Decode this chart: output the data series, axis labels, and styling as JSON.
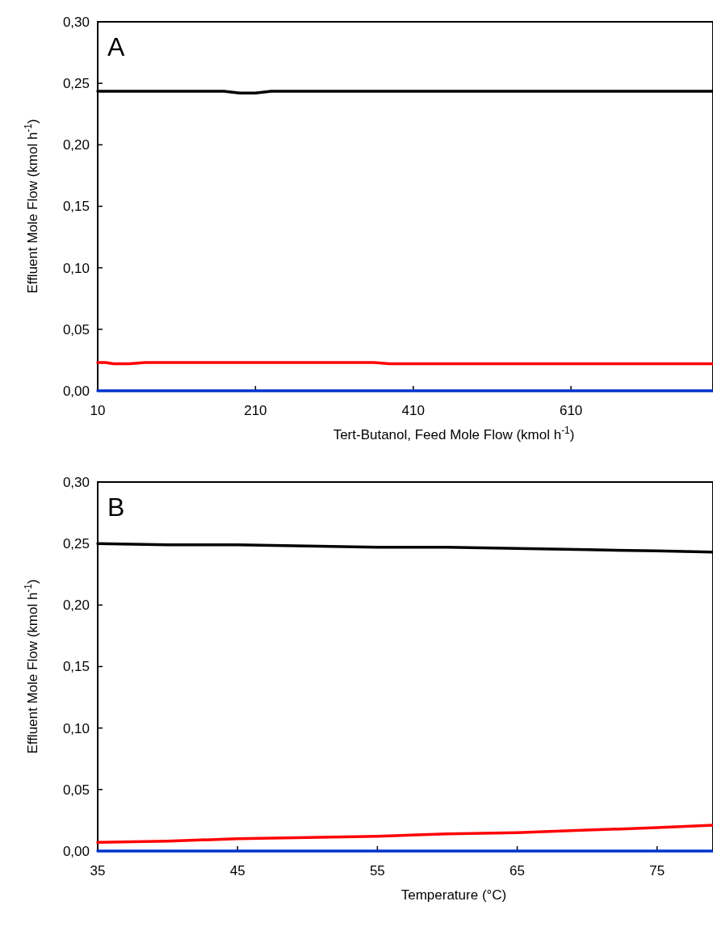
{
  "chart_data": [
    {
      "type": "line",
      "annotations": [
        "A"
      ],
      "xlabel": "Tert-Butanol, Feed Mole Flow (kmol h$^{-1}$)",
      "ylabel": "Effluent Mole Flow (kmol h$^{-1}$)",
      "xlim": [
        10,
        790
      ],
      "xticks": [
        10,
        210,
        410,
        610
      ],
      "ylim": [
        0,
        0.3
      ],
      "yticks": [
        {
          "value": 0,
          "label": "0,00"
        },
        {
          "value": 0.05,
          "label": "0,05"
        },
        {
          "value": 0.1,
          "label": "0,10"
        },
        {
          "value": 0.15,
          "label": "0,15"
        },
        {
          "value": 0.2,
          "label": "0,20"
        },
        {
          "value": 0.25,
          "label": "0,25"
        },
        {
          "value": 0.3,
          "label": "0,30"
        }
      ],
      "grid": false,
      "marker": "none",
      "line_style": "solid",
      "series": [
        {
          "color": "#000000",
          "x": [
            10,
            170,
            190,
            210,
            230,
            400,
            600,
            790
          ],
          "values": [
            0.2435,
            0.2435,
            0.242,
            0.242,
            0.2435,
            0.2435,
            0.2435,
            0.2435
          ]
        },
        {
          "color": "#ff0000",
          "x": [
            10,
            20,
            30,
            50,
            70,
            360,
            380,
            600,
            790
          ],
          "values": [
            0.023,
            0.023,
            0.022,
            0.022,
            0.023,
            0.023,
            0.022,
            0.022,
            0.022
          ]
        },
        {
          "color": "#0033cc",
          "x": [
            10,
            790
          ],
          "values": [
            0,
            0
          ]
        }
      ]
    },
    {
      "type": "line",
      "annotations": [
        "B"
      ],
      "xlabel": "Temperature (°C)",
      "ylabel": "Effluent Mole Flow (kmol h$^{-1}$)",
      "xlim": [
        35,
        79
      ],
      "xticks": [
        35,
        45,
        55,
        65,
        75
      ],
      "ylim": [
        0,
        0.3
      ],
      "yticks": [
        {
          "value": 0,
          "label": "0,00"
        },
        {
          "value": 0.05,
          "label": "0,05"
        },
        {
          "value": 0.1,
          "label": "0,10"
        },
        {
          "value": 0.15,
          "label": "0,15"
        },
        {
          "value": 0.2,
          "label": "0,20"
        },
        {
          "value": 0.25,
          "label": "0,25"
        },
        {
          "value": 0.3,
          "label": "0,30"
        }
      ],
      "grid": false,
      "marker": "none",
      "line_style": "solid",
      "series": [
        {
          "color": "#000000",
          "x": [
            35,
            40,
            45,
            50,
            55,
            60,
            65,
            70,
            75,
            79
          ],
          "values": [
            0.25,
            0.249,
            0.249,
            0.248,
            0.247,
            0.247,
            0.246,
            0.245,
            0.244,
            0.243
          ]
        },
        {
          "color": "#ff0000",
          "x": [
            35,
            40,
            45,
            50,
            55,
            60,
            65,
            70,
            75,
            79
          ],
          "values": [
            0.007,
            0.008,
            0.01,
            0.011,
            0.012,
            0.014,
            0.015,
            0.017,
            0.019,
            0.021
          ]
        },
        {
          "color": "#0033cc",
          "x": [
            35,
            79
          ],
          "values": [
            0,
            0
          ]
        }
      ]
    }
  ]
}
